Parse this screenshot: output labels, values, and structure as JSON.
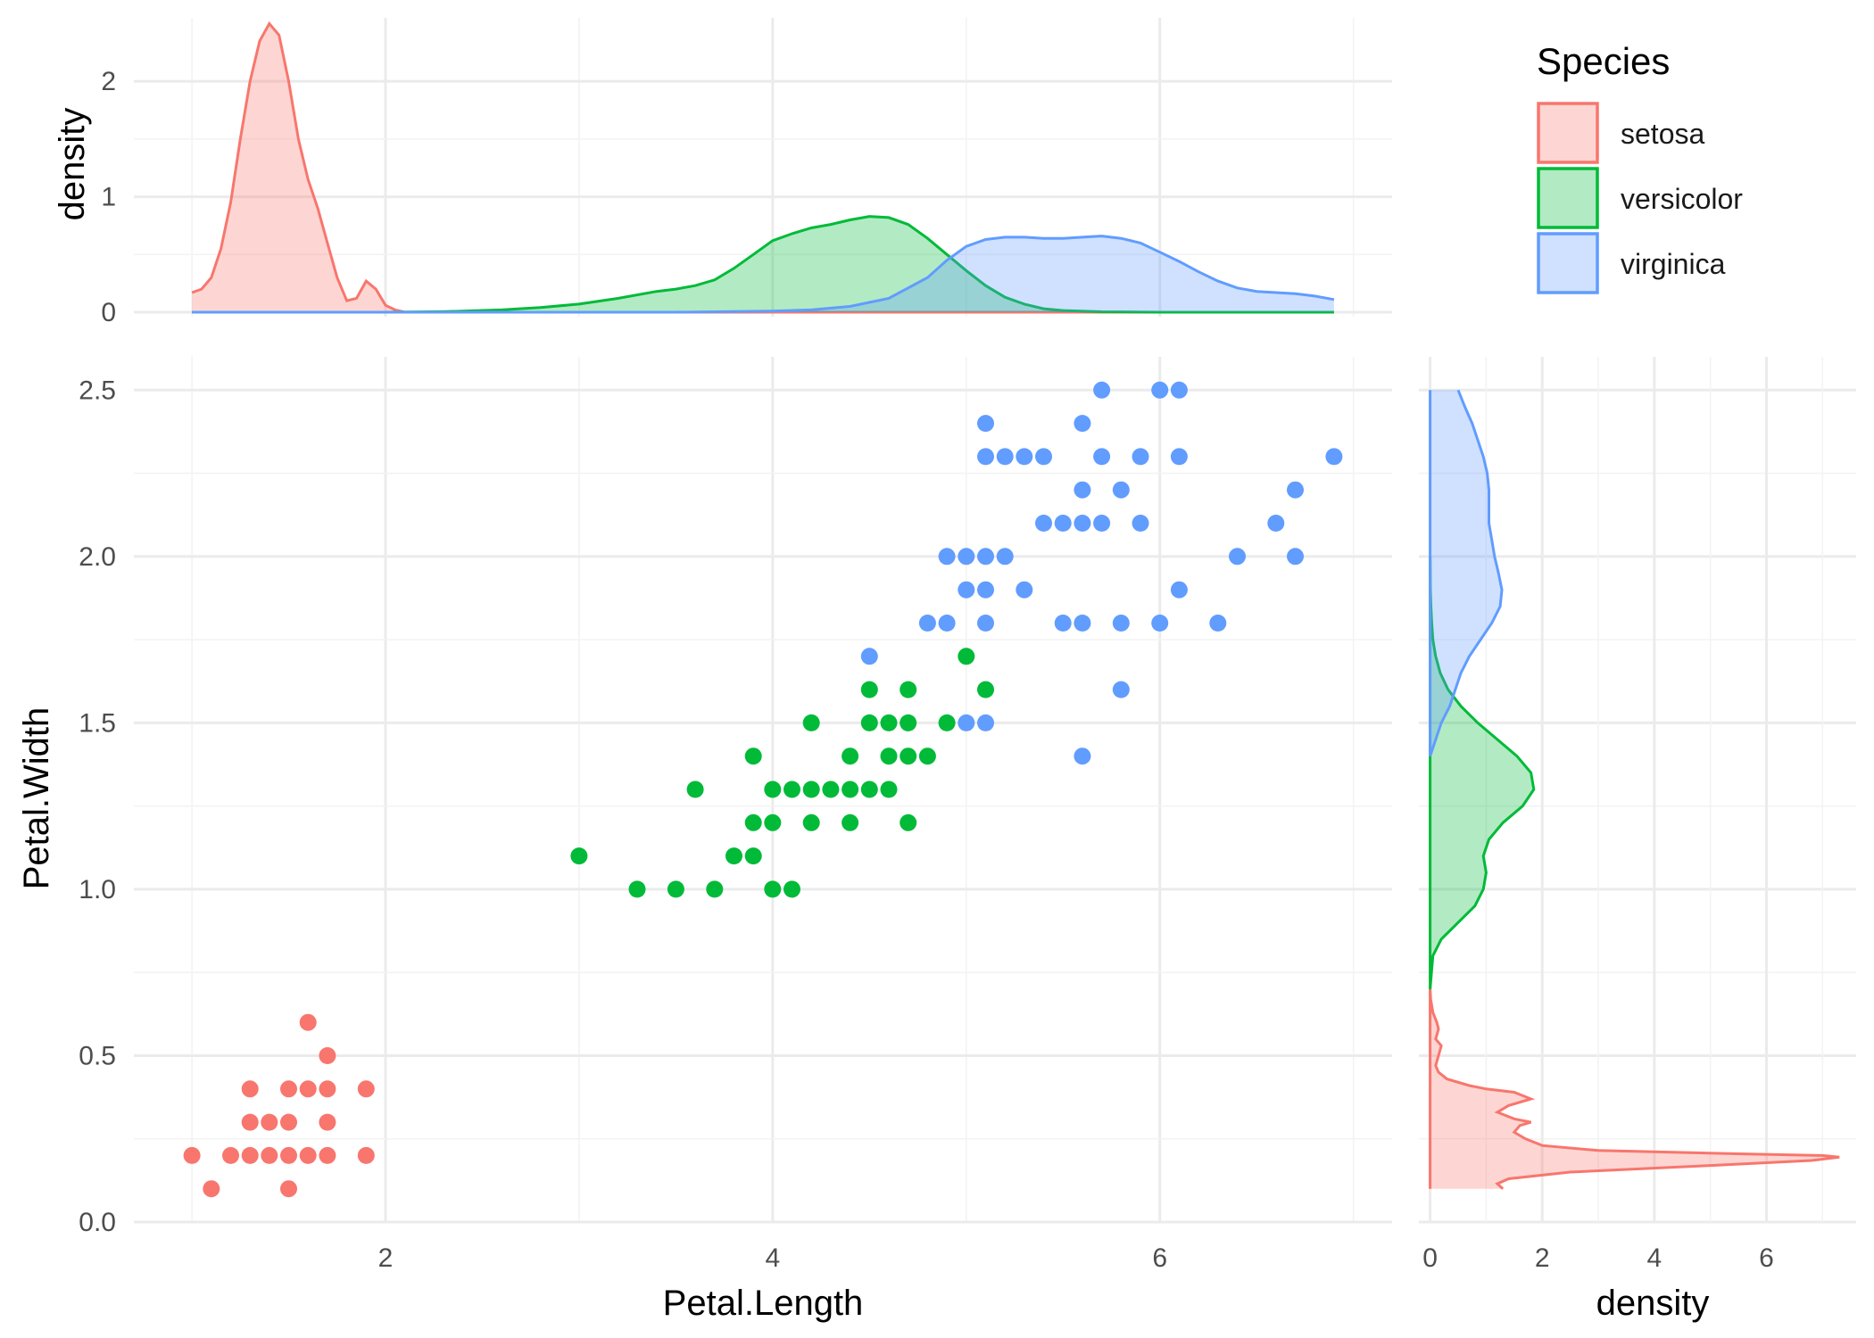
{
  "colors": {
    "setosa": "#F8766D",
    "versicolor": "#00BA38",
    "virginica": "#619CFF"
  },
  "legend": {
    "title": "Species",
    "items": [
      "setosa",
      "versicolor",
      "virginica"
    ]
  },
  "chart_data": [
    {
      "type": "scatter",
      "name": "main-scatter",
      "xlabel": "Petal.Length",
      "ylabel": "Petal.Width",
      "xlim": [
        0.7,
        7.2
      ],
      "ylim": [
        0.0,
        2.6
      ],
      "x_ticks": [
        "2",
        "4",
        "6"
      ],
      "x_tick_values": [
        2,
        4,
        6
      ],
      "y_ticks": [
        "0.0",
        "0.5",
        "1.0",
        "1.5",
        "2.0",
        "2.5"
      ],
      "y_tick_values": [
        0.0,
        0.5,
        1.0,
        1.5,
        2.0,
        2.5
      ],
      "grid": true,
      "series": [
        {
          "name": "setosa",
          "points": [
            [
              1.0,
              0.2
            ],
            [
              1.1,
              0.1
            ],
            [
              1.2,
              0.2
            ],
            [
              1.3,
              0.2
            ],
            [
              1.3,
              0.3
            ],
            [
              1.3,
              0.4
            ],
            [
              1.4,
              0.2
            ],
            [
              1.4,
              0.3
            ],
            [
              1.5,
              0.1
            ],
            [
              1.5,
              0.2
            ],
            [
              1.5,
              0.3
            ],
            [
              1.5,
              0.4
            ],
            [
              1.6,
              0.2
            ],
            [
              1.6,
              0.4
            ],
            [
              1.6,
              0.6
            ],
            [
              1.7,
              0.2
            ],
            [
              1.7,
              0.3
            ],
            [
              1.7,
              0.4
            ],
            [
              1.7,
              0.5
            ],
            [
              1.9,
              0.2
            ],
            [
              1.9,
              0.4
            ]
          ]
        },
        {
          "name": "versicolor",
          "points": [
            [
              3.0,
              1.1
            ],
            [
              3.3,
              1.0
            ],
            [
              3.5,
              1.0
            ],
            [
              3.6,
              1.3
            ],
            [
              3.7,
              1.0
            ],
            [
              3.8,
              1.1
            ],
            [
              3.9,
              1.1
            ],
            [
              3.9,
              1.2
            ],
            [
              3.9,
              1.4
            ],
            [
              4.0,
              1.0
            ],
            [
              4.0,
              1.2
            ],
            [
              4.0,
              1.3
            ],
            [
              4.1,
              1.0
            ],
            [
              4.1,
              1.3
            ],
            [
              4.2,
              1.2
            ],
            [
              4.2,
              1.3
            ],
            [
              4.2,
              1.5
            ],
            [
              4.3,
              1.3
            ],
            [
              4.4,
              1.2
            ],
            [
              4.4,
              1.3
            ],
            [
              4.4,
              1.4
            ],
            [
              4.5,
              1.3
            ],
            [
              4.5,
              1.5
            ],
            [
              4.5,
              1.6
            ],
            [
              4.6,
              1.3
            ],
            [
              4.6,
              1.4
            ],
            [
              4.6,
              1.5
            ],
            [
              4.7,
              1.2
            ],
            [
              4.7,
              1.4
            ],
            [
              4.7,
              1.5
            ],
            [
              4.7,
              1.6
            ],
            [
              4.8,
              1.4
            ],
            [
              4.9,
              1.5
            ],
            [
              5.0,
              1.7
            ],
            [
              5.1,
              1.6
            ]
          ]
        },
        {
          "name": "virginica",
          "points": [
            [
              4.5,
              1.7
            ],
            [
              4.8,
              1.8
            ],
            [
              4.9,
              1.8
            ],
            [
              4.9,
              2.0
            ],
            [
              5.0,
              1.5
            ],
            [
              5.0,
              1.9
            ],
            [
              5.0,
              2.0
            ],
            [
              5.1,
              1.5
            ],
            [
              5.1,
              1.8
            ],
            [
              5.1,
              1.9
            ],
            [
              5.1,
              2.0
            ],
            [
              5.1,
              2.3
            ],
            [
              5.1,
              2.4
            ],
            [
              5.2,
              2.0
            ],
            [
              5.2,
              2.3
            ],
            [
              5.3,
              1.9
            ],
            [
              5.3,
              2.3
            ],
            [
              5.4,
              2.1
            ],
            [
              5.4,
              2.3
            ],
            [
              5.5,
              1.8
            ],
            [
              5.5,
              2.1
            ],
            [
              5.6,
              1.4
            ],
            [
              5.6,
              1.8
            ],
            [
              5.6,
              2.1
            ],
            [
              5.6,
              2.2
            ],
            [
              5.6,
              2.4
            ],
            [
              5.7,
              2.1
            ],
            [
              5.7,
              2.3
            ],
            [
              5.7,
              2.5
            ],
            [
              5.8,
              1.6
            ],
            [
              5.8,
              1.8
            ],
            [
              5.8,
              2.2
            ],
            [
              5.9,
              2.1
            ],
            [
              5.9,
              2.3
            ],
            [
              6.0,
              1.8
            ],
            [
              6.0,
              2.5
            ],
            [
              6.1,
              1.9
            ],
            [
              6.1,
              2.3
            ],
            [
              6.1,
              2.5
            ],
            [
              6.3,
              1.8
            ],
            [
              6.4,
              2.0
            ],
            [
              6.6,
              2.1
            ],
            [
              6.7,
              2.0
            ],
            [
              6.7,
              2.2
            ],
            [
              6.9,
              2.3
            ]
          ]
        }
      ]
    },
    {
      "type": "area",
      "name": "top-density",
      "xlabel": "",
      "ylabel": "density",
      "xlim": [
        0.7,
        7.2
      ],
      "ylim": [
        0,
        2.55
      ],
      "y_ticks": [
        "0",
        "1",
        "2"
      ],
      "y_tick_values": [
        0,
        1,
        2
      ],
      "series": [
        {
          "name": "setosa",
          "x": [
            1.0,
            1.05,
            1.1,
            1.15,
            1.2,
            1.25,
            1.3,
            1.35,
            1.4,
            1.45,
            1.5,
            1.55,
            1.6,
            1.65,
            1.7,
            1.75,
            1.8,
            1.85,
            1.9,
            1.95,
            2.0,
            2.05,
            2.1,
            2.2,
            2.4,
            2.7,
            3.5,
            4.5,
            5.5,
            6.9
          ],
          "y": [
            0.17,
            0.2,
            0.3,
            0.55,
            0.95,
            1.5,
            2.0,
            2.35,
            2.5,
            2.4,
            2.0,
            1.5,
            1.15,
            0.9,
            0.6,
            0.3,
            0.1,
            0.12,
            0.27,
            0.2,
            0.06,
            0.02,
            0.0,
            0.0,
            0.0,
            0.0,
            0.0,
            0.0,
            0.0,
            0.0
          ]
        },
        {
          "name": "versicolor",
          "x": [
            1.0,
            2.0,
            2.3,
            2.6,
            2.8,
            3.0,
            3.2,
            3.4,
            3.5,
            3.6,
            3.7,
            3.8,
            3.9,
            4.0,
            4.1,
            4.2,
            4.3,
            4.4,
            4.5,
            4.6,
            4.7,
            4.8,
            4.9,
            5.0,
            5.1,
            5.2,
            5.3,
            5.4,
            5.5,
            5.7,
            6.0,
            6.9
          ],
          "y": [
            0.0,
            0.0,
            0.005,
            0.02,
            0.04,
            0.07,
            0.12,
            0.18,
            0.2,
            0.23,
            0.28,
            0.38,
            0.5,
            0.62,
            0.68,
            0.73,
            0.76,
            0.8,
            0.83,
            0.82,
            0.76,
            0.64,
            0.5,
            0.36,
            0.23,
            0.13,
            0.07,
            0.03,
            0.015,
            0.004,
            0.0,
            0.0
          ]
        },
        {
          "name": "virginica",
          "x": [
            1.0,
            3.5,
            4.0,
            4.2,
            4.4,
            4.6,
            4.8,
            4.9,
            5.0,
            5.1,
            5.2,
            5.3,
            5.4,
            5.5,
            5.6,
            5.7,
            5.8,
            5.9,
            6.0,
            6.1,
            6.2,
            6.3,
            6.4,
            6.5,
            6.6,
            6.7,
            6.8,
            6.9
          ],
          "y": [
            0.0,
            0.0,
            0.01,
            0.02,
            0.05,
            0.12,
            0.3,
            0.45,
            0.57,
            0.63,
            0.65,
            0.65,
            0.64,
            0.64,
            0.65,
            0.66,
            0.64,
            0.6,
            0.52,
            0.44,
            0.35,
            0.27,
            0.21,
            0.18,
            0.17,
            0.16,
            0.14,
            0.11
          ]
        }
      ]
    },
    {
      "type": "area",
      "name": "right-density",
      "xlabel": "density",
      "ylabel": "",
      "xlim": [
        -0.2,
        7.6
      ],
      "ylim": [
        0.0,
        2.6
      ],
      "x_ticks": [
        "0",
        "2",
        "4",
        "6"
      ],
      "x_tick_values": [
        0,
        2,
        4,
        6
      ],
      "series": [
        {
          "name": "setosa",
          "y": [
            0.1,
            0.115,
            0.13,
            0.15,
            0.17,
            0.185,
            0.195,
            0.2,
            0.205,
            0.215,
            0.23,
            0.25,
            0.27,
            0.29,
            0.3,
            0.31,
            0.33,
            0.35,
            0.37,
            0.39,
            0.4,
            0.41,
            0.43,
            0.45,
            0.47,
            0.5,
            0.53,
            0.55,
            0.58,
            0.6,
            0.63,
            0.67,
            0.7
          ],
          "x": [
            1.3,
            1.2,
            1.4,
            2.5,
            5.0,
            6.8,
            7.3,
            7.0,
            5.5,
            3.0,
            2.0,
            1.7,
            1.5,
            1.6,
            1.8,
            1.5,
            1.2,
            1.4,
            1.8,
            1.5,
            1.0,
            0.7,
            0.3,
            0.15,
            0.1,
            0.15,
            0.2,
            0.1,
            0.15,
            0.12,
            0.05,
            0.01,
            0.0
          ]
        },
        {
          "name": "versicolor",
          "y": [
            0.7,
            0.8,
            0.85,
            0.9,
            0.95,
            1.0,
            1.05,
            1.1,
            1.15,
            1.2,
            1.25,
            1.3,
            1.35,
            1.4,
            1.45,
            1.5,
            1.55,
            1.6,
            1.65,
            1.7,
            1.75,
            1.8,
            1.85,
            1.9,
            2.0
          ],
          "x": [
            0.0,
            0.05,
            0.2,
            0.5,
            0.8,
            0.95,
            1.0,
            0.95,
            1.05,
            1.3,
            1.65,
            1.85,
            1.8,
            1.55,
            1.2,
            0.85,
            0.55,
            0.32,
            0.18,
            0.1,
            0.05,
            0.03,
            0.015,
            0.005,
            0.0
          ]
        },
        {
          "name": "virginica",
          "y": [
            1.4,
            1.5,
            1.55,
            1.6,
            1.65,
            1.7,
            1.75,
            1.8,
            1.85,
            1.9,
            1.95,
            2.0,
            2.05,
            2.1,
            2.15,
            2.2,
            2.25,
            2.3,
            2.35,
            2.4,
            2.45,
            2.5
          ],
          "x": [
            0.0,
            0.2,
            0.35,
            0.45,
            0.55,
            0.7,
            0.9,
            1.1,
            1.25,
            1.28,
            1.22,
            1.15,
            1.1,
            1.05,
            1.05,
            1.05,
            1.02,
            0.95,
            0.85,
            0.75,
            0.62,
            0.5
          ]
        }
      ]
    }
  ]
}
